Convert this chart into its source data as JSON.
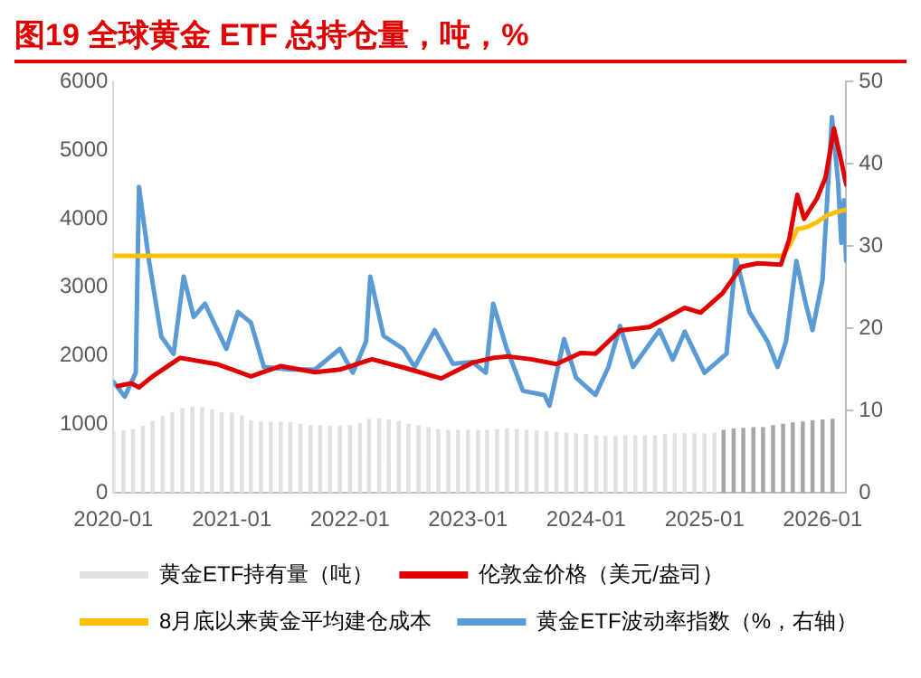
{
  "chart_data": {
    "type": "line",
    "title": "图19  全球黄金 ETF 总持仓量，吨，%",
    "xlim": [
      "2020-01-01",
      "2026-03-15"
    ],
    "xticks": [
      {
        "value": "2020-01-01",
        "label": "2020-01"
      },
      {
        "value": "2021-01-01",
        "label": "2021-01"
      },
      {
        "value": "2022-01-01",
        "label": "2022-01"
      },
      {
        "value": "2023-01-01",
        "label": "2023-01"
      },
      {
        "value": "2024-01-01",
        "label": "2024-01"
      },
      {
        "value": "2025-01-01",
        "label": "2025-01"
      },
      {
        "value": "2026-01-01",
        "label": "2026-01"
      }
    ],
    "ylim": [
      0,
      6000
    ],
    "yticks": [
      0,
      1000,
      2000,
      3000,
      4000,
      5000,
      6000
    ],
    "y2lim": [
      0,
      50
    ],
    "y2ticks": [
      0,
      10,
      20,
      30,
      40,
      50
    ],
    "grid": false,
    "legend": "bottom",
    "series": [
      {
        "name": "黄金ETF持有量（吨）",
        "type": "bar",
        "color": "#e0e0e0",
        "x": [
          "2020-01",
          "2020-02",
          "2020-03",
          "2020-04",
          "2020-05",
          "2020-06",
          "2020-07",
          "2020-08",
          "2020-09",
          "2020-10",
          "2020-11",
          "2020-12",
          "2021-01",
          "2021-02",
          "2021-03",
          "2021-04",
          "2021-05",
          "2021-06",
          "2021-07",
          "2021-08",
          "2021-09",
          "2021-10",
          "2021-11",
          "2021-12",
          "2022-01",
          "2022-02",
          "2022-03",
          "2022-04",
          "2022-05",
          "2022-06",
          "2022-07",
          "2022-08",
          "2022-09",
          "2022-10",
          "2022-11",
          "2022-12",
          "2023-01",
          "2023-02",
          "2023-03",
          "2023-04",
          "2023-05",
          "2023-06",
          "2023-07",
          "2023-08",
          "2023-09",
          "2023-10",
          "2023-11",
          "2023-12",
          "2024-01",
          "2024-02",
          "2024-03",
          "2024-04",
          "2024-05",
          "2024-06",
          "2024-07",
          "2024-08",
          "2024-09",
          "2024-10",
          "2024-11",
          "2024-12",
          "2025-01",
          "2025-02",
          "2025-03",
          "2025-04",
          "2025-05",
          "2025-06",
          "2025-07",
          "2025-08",
          "2025-09",
          "2025-10",
          "2025-11",
          "2025-12",
          "2026-01",
          "2026-02"
        ],
        "values": [
          900,
          910,
          930,
          980,
          1050,
          1120,
          1180,
          1240,
          1260,
          1250,
          1220,
          1180,
          1170,
          1130,
          1060,
          1040,
          1040,
          1040,
          1030,
          1010,
          990,
          990,
          980,
          980,
          990,
          1020,
          1080,
          1090,
          1070,
          1050,
          1010,
          990,
          960,
          930,
          920,
          920,
          920,
          920,
          920,
          930,
          940,
          930,
          920,
          910,
          900,
          890,
          880,
          870,
          860,
          840,
          830,
          830,
          840,
          840,
          840,
          840,
          860,
          870,
          870,
          870,
          870,
          880,
          920,
          940,
          950,
          960,
          960,
          990,
          1010,
          1030,
          1040,
          1060,
          1070,
          1080
        ],
        "colors": [
          "#e0e0e0",
          "#e0e0e0",
          "#e0e0e0",
          "#e0e0e0",
          "#e0e0e0",
          "#e0e0e0",
          "#e0e0e0",
          "#e0e0e0",
          "#e0e0e0",
          "#e0e0e0",
          "#e0e0e0",
          "#e0e0e0",
          "#e0e0e0",
          "#e0e0e0",
          "#e0e0e0",
          "#e0e0e0",
          "#e0e0e0",
          "#e0e0e0",
          "#e0e0e0",
          "#e0e0e0",
          "#e0e0e0",
          "#e0e0e0",
          "#e0e0e0",
          "#e0e0e0",
          "#e0e0e0",
          "#e0e0e0",
          "#e0e0e0",
          "#e0e0e0",
          "#e0e0e0",
          "#e0e0e0",
          "#e0e0e0",
          "#e0e0e0",
          "#e0e0e0",
          "#e0e0e0",
          "#e0e0e0",
          "#e0e0e0",
          "#e0e0e0",
          "#e0e0e0",
          "#e0e0e0",
          "#e0e0e0",
          "#e0e0e0",
          "#e0e0e0",
          "#e0e0e0",
          "#e0e0e0",
          "#e0e0e0",
          "#e0e0e0",
          "#e0e0e0",
          "#e0e0e0",
          "#e0e0e0",
          "#e0e0e0",
          "#e0e0e0",
          "#e0e0e0",
          "#e0e0e0",
          "#e0e0e0",
          "#e0e0e0",
          "#e0e0e0",
          "#e0e0e0",
          "#e0e0e0",
          "#e0e0e0",
          "#e0e0e0",
          "#e0e0e0",
          "#e0e0e0",
          "#a6a6a6",
          "#a6a6a6",
          "#a6a6a6",
          "#a6a6a6",
          "#a6a6a6",
          "#a6a6a6",
          "#a6a6a6",
          "#a6a6a6",
          "#a6a6a6",
          "#a6a6a6",
          "#a6a6a6",
          "#a6a6a6"
        ]
      },
      {
        "name": "伦敦金价格（美元/盎司）",
        "type": "line",
        "color": "#e00000",
        "x": [
          "2020-01-15",
          "2020-02-25",
          "2020-03-20",
          "2020-05-01",
          "2020-07-25",
          "2020-11-15",
          "2021-03-01",
          "2021-06-01",
          "2021-09-15",
          "2021-12-01",
          "2022-03-10",
          "2022-06-15",
          "2022-10-10",
          "2023-01-15",
          "2023-03-20",
          "2023-05-05",
          "2023-07-15",
          "2023-10-01",
          "2023-12-15",
          "2024-01-30",
          "2024-04-15",
          "2024-07-15",
          "2024-11-01",
          "2024-12-20",
          "2025-02-25",
          "2025-04-25",
          "2025-06-15",
          "2025-08-25",
          "2025-09-20",
          "2025-10-15",
          "2025-11-05",
          "2025-12-15",
          "2026-01-10",
          "2026-01-25",
          "2026-02-05",
          "2026-02-25",
          "2026-03-15"
        ],
        "values": [
          1560,
          1600,
          1540,
          1700,
          1970,
          1880,
          1700,
          1850,
          1760,
          1800,
          1950,
          1830,
          1670,
          1900,
          1970,
          1990,
          1950,
          1880,
          2040,
          2030,
          2370,
          2420,
          2700,
          2630,
          2910,
          3300,
          3350,
          3330,
          3700,
          4350,
          4000,
          4300,
          4600,
          5000,
          5320,
          4900,
          4500
        ]
      },
      {
        "name": "8月底以来黄金平均建仓成本",
        "type": "line",
        "color": "#ffc000",
        "x": [
          "2020-01-01",
          "2025-08-29",
          "2025-09-20",
          "2025-10-15",
          "2025-11-15",
          "2025-12-15",
          "2026-01-15",
          "2026-02-15",
          "2026-03-15"
        ],
        "values": [
          3460,
          3460,
          3600,
          3850,
          3880,
          3950,
          4050,
          4100,
          4130
        ]
      },
      {
        "name": "黄金ETF波动率指数（%，右轴）",
        "type": "line",
        "axis": "y2",
        "color": "#5b9bd5",
        "x": [
          "2020-01-01",
          "2020-02-05",
          "2020-03-10",
          "2020-03-20",
          "2020-04-20",
          "2020-05-28",
          "2020-07-05",
          "2020-08-05",
          "2020-09-05",
          "2020-10-10",
          "2020-12-15",
          "2021-01-20",
          "2021-03-01",
          "2021-04-10",
          "2021-07-01",
          "2021-09-15",
          "2021-12-01",
          "2022-01-10",
          "2022-02-20",
          "2022-03-05",
          "2022-04-15",
          "2022-06-15",
          "2022-07-20",
          "2022-09-20",
          "2022-11-15",
          "2023-01-15",
          "2023-02-25",
          "2023-03-20",
          "2023-05-01",
          "2023-06-20",
          "2023-08-25",
          "2023-09-10",
          "2023-10-25",
          "2023-12-01",
          "2024-01-30",
          "2024-03-10",
          "2024-04-15",
          "2024-05-25",
          "2024-08-15",
          "2024-09-25",
          "2024-11-01",
          "2025-01-01",
          "2025-03-10",
          "2025-04-08",
          "2025-05-20",
          "2025-07-15",
          "2025-08-15",
          "2025-09-10",
          "2025-10-12",
          "2025-11-10",
          "2025-12-01",
          "2026-01-01",
          "2026-01-30",
          "2026-02-18",
          "2026-02-28",
          "2026-03-08",
          "2026-03-15"
        ],
        "values": [
          13.5,
          11.7,
          14.6,
          37.2,
          28.2,
          19,
          16.9,
          26.3,
          21.4,
          23,
          17.5,
          22,
          20.7,
          15.3,
          15,
          15,
          17.5,
          14.6,
          18.4,
          26.3,
          19.1,
          17.5,
          15.3,
          19.8,
          15.7,
          15.9,
          14.6,
          23,
          17.5,
          12.4,
          11.9,
          10.6,
          18.7,
          14,
          11.9,
          15.3,
          20.3,
          15.3,
          19.8,
          16.2,
          19.6,
          14.6,
          16.9,
          28.6,
          22,
          18.4,
          15.3,
          18.4,
          28.2,
          23,
          19.8,
          25.9,
          45.7,
          37.8,
          30.4,
          35.6,
          28.2
        ]
      }
    ]
  }
}
